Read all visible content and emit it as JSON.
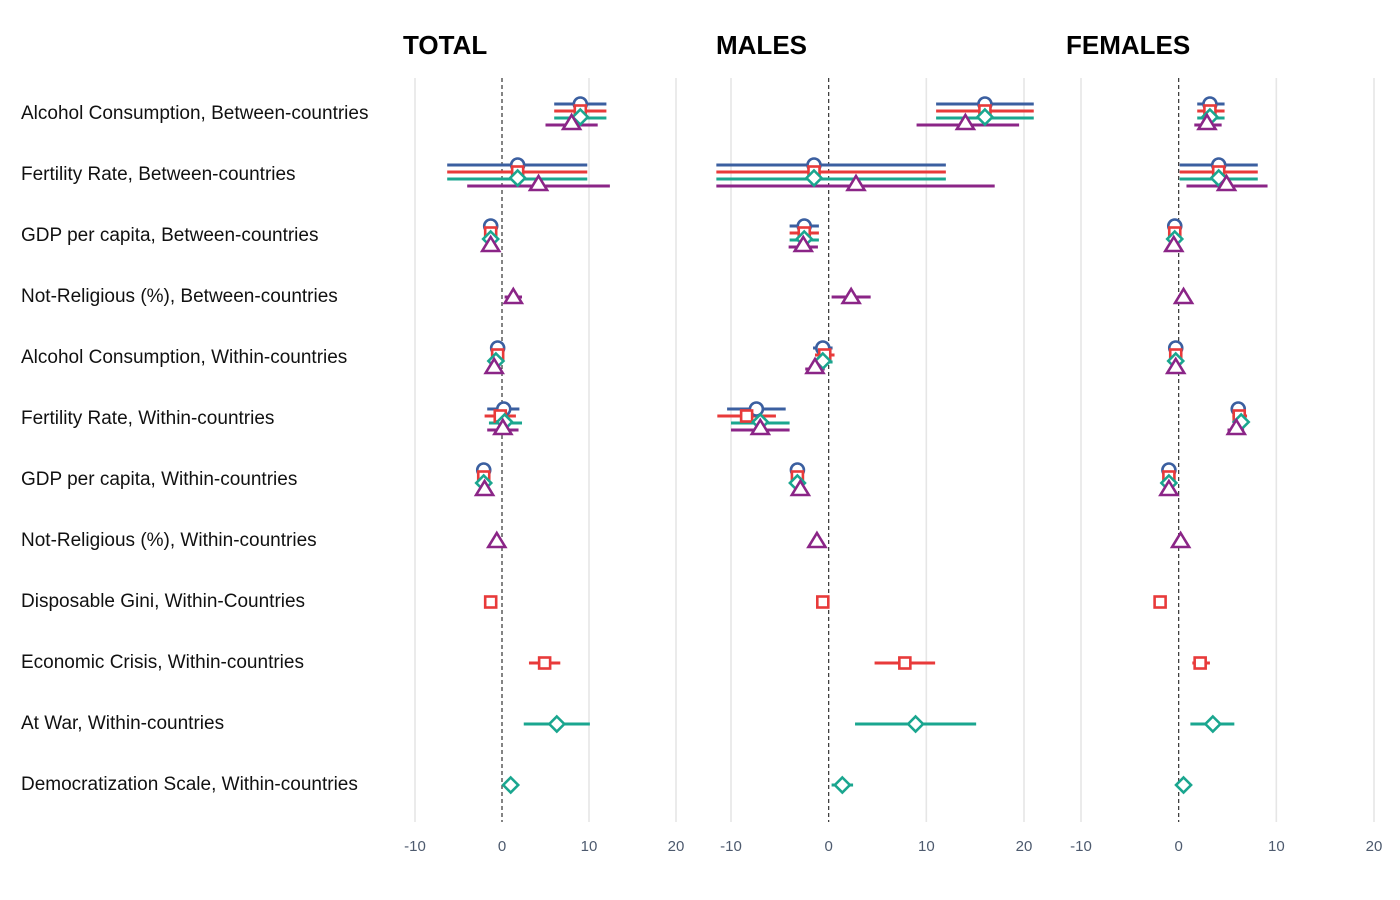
{
  "chart_data": {
    "type": "forest",
    "title": "",
    "xlabel": "",
    "ylabel": "",
    "xlim": [
      -10,
      20
    ],
    "xticks": [
      -10,
      0,
      10,
      20
    ],
    "reference_line": 0,
    "grid": true,
    "legend": "none",
    "rows": [
      "Alcohol Consumption, Between-countries",
      "Fertility Rate, Between-countries",
      "GDP per capita, Between-countries",
      "Not-Religious (%), Between-countries",
      "Alcohol Consumption, Within-countries",
      "Fertility Rate, Within-countries",
      "GDP per capita, Within-countries",
      "Not-Religious (%), Within-countries",
      "Disposable Gini, Within-Countries",
      "Economic Crisis, Within-countries",
      "At War, Within-countries",
      "Democratization Scale, Within-countries"
    ],
    "models": [
      {
        "id": "m1",
        "marker": "circle",
        "color": "#3b5fa0"
      },
      {
        "id": "m2",
        "marker": "square",
        "color": "#e83a3a"
      },
      {
        "id": "m3",
        "marker": "diamond",
        "color": "#1aa68f"
      },
      {
        "id": "m4",
        "marker": "triangle",
        "color": "#8b2587"
      }
    ],
    "panels": [
      {
        "title": "TOTAL",
        "estimates": [
          {
            "row": 0,
            "model": "m1",
            "est": 9.0,
            "lo": 6.0,
            "hi": 12.0
          },
          {
            "row": 0,
            "model": "m2",
            "est": 9.0,
            "lo": 6.0,
            "hi": 12.0
          },
          {
            "row": 0,
            "model": "m3",
            "est": 9.0,
            "lo": 6.0,
            "hi": 12.0
          },
          {
            "row": 0,
            "model": "m4",
            "est": 8.0,
            "lo": 5.0,
            "hi": 11.0
          },
          {
            "row": 1,
            "model": "m1",
            "est": 1.8,
            "lo": -6.3,
            "hi": 9.8
          },
          {
            "row": 1,
            "model": "m2",
            "est": 1.8,
            "lo": -6.3,
            "hi": 9.8
          },
          {
            "row": 1,
            "model": "m3",
            "est": 1.8,
            "lo": -6.3,
            "hi": 9.8
          },
          {
            "row": 1,
            "model": "m4",
            "est": 4.2,
            "lo": -4.0,
            "hi": 12.4
          },
          {
            "row": 2,
            "model": "m1",
            "est": -1.3,
            "lo": -2.0,
            "hi": -0.6
          },
          {
            "row": 2,
            "model": "m2",
            "est": -1.3,
            "lo": -2.0,
            "hi": -0.6
          },
          {
            "row": 2,
            "model": "m3",
            "est": -1.3,
            "lo": -2.0,
            "hi": -0.6
          },
          {
            "row": 2,
            "model": "m4",
            "est": -1.3,
            "lo": -2.0,
            "hi": -0.6
          },
          {
            "row": 3,
            "model": "m4",
            "est": 1.3,
            "lo": 0.3,
            "hi": 2.3
          },
          {
            "row": 4,
            "model": "m1",
            "est": -0.5,
            "lo": -0.9,
            "hi": -0.1
          },
          {
            "row": 4,
            "model": "m2",
            "est": -0.5,
            "lo": -0.9,
            "hi": -0.1
          },
          {
            "row": 4,
            "model": "m3",
            "est": -0.7,
            "lo": -1.2,
            "hi": -0.2
          },
          {
            "row": 4,
            "model": "m4",
            "est": -0.9,
            "lo": -1.4,
            "hi": -0.4
          },
          {
            "row": 5,
            "model": "m1",
            "est": 0.2,
            "lo": -1.7,
            "hi": 2.0
          },
          {
            "row": 5,
            "model": "m2",
            "est": -0.2,
            "lo": -2.0,
            "hi": 1.6
          },
          {
            "row": 5,
            "model": "m3",
            "est": 0.3,
            "lo": -1.5,
            "hi": 2.3
          },
          {
            "row": 5,
            "model": "m4",
            "est": 0.1,
            "lo": -1.7,
            "hi": 1.9
          },
          {
            "row": 6,
            "model": "m1",
            "est": -2.1,
            "lo": -2.6,
            "hi": -1.6
          },
          {
            "row": 6,
            "model": "m2",
            "est": -2.1,
            "lo": -2.6,
            "hi": -1.6
          },
          {
            "row": 6,
            "model": "m3",
            "est": -2.1,
            "lo": -2.7,
            "hi": -1.5
          },
          {
            "row": 6,
            "model": "m4",
            "est": -2.0,
            "lo": -2.6,
            "hi": -1.4
          },
          {
            "row": 7,
            "model": "m4",
            "est": -0.6,
            "lo": -1.1,
            "hi": -0.1
          },
          {
            "row": 8,
            "model": "m2",
            "est": -1.3,
            "lo": -1.8,
            "hi": -0.8
          },
          {
            "row": 9,
            "model": "m2",
            "est": 4.9,
            "lo": 3.1,
            "hi": 6.7
          },
          {
            "row": 10,
            "model": "m3",
            "est": 6.3,
            "lo": 2.5,
            "hi": 10.1
          },
          {
            "row": 11,
            "model": "m3",
            "est": 1.0,
            "lo": 0.5,
            "hi": 1.5
          }
        ]
      },
      {
        "title": "MALES",
        "estimates": [
          {
            "row": 0,
            "model": "m1",
            "est": 16.0,
            "lo": 11.0,
            "hi": 21.0
          },
          {
            "row": 0,
            "model": "m2",
            "est": 16.0,
            "lo": 11.0,
            "hi": 21.0
          },
          {
            "row": 0,
            "model": "m3",
            "est": 16.0,
            "lo": 11.0,
            "hi": 21.0
          },
          {
            "row": 0,
            "model": "m4",
            "est": 14.0,
            "lo": 9.0,
            "hi": 19.5
          },
          {
            "row": 1,
            "model": "m1",
            "est": -1.5,
            "lo": -11.5,
            "hi": 12.0
          },
          {
            "row": 1,
            "model": "m2",
            "est": -1.5,
            "lo": -11.5,
            "hi": 12.0
          },
          {
            "row": 1,
            "model": "m3",
            "est": -1.5,
            "lo": -11.5,
            "hi": 12.0
          },
          {
            "row": 1,
            "model": "m4",
            "est": 2.8,
            "lo": -11.5,
            "hi": 17.0
          },
          {
            "row": 2,
            "model": "m1",
            "est": -2.5,
            "lo": -4.0,
            "hi": -1.0
          },
          {
            "row": 2,
            "model": "m2",
            "est": -2.5,
            "lo": -4.0,
            "hi": -1.0
          },
          {
            "row": 2,
            "model": "m3",
            "est": -2.5,
            "lo": -4.0,
            "hi": -1.0
          },
          {
            "row": 2,
            "model": "m4",
            "est": -2.6,
            "lo": -4.1,
            "hi": -1.1
          },
          {
            "row": 3,
            "model": "m4",
            "est": 2.3,
            "lo": 0.3,
            "hi": 4.3
          },
          {
            "row": 4,
            "model": "m1",
            "est": -0.6,
            "lo": -1.6,
            "hi": 0.4
          },
          {
            "row": 4,
            "model": "m2",
            "est": -0.4,
            "lo": -1.4,
            "hi": 0.6
          },
          {
            "row": 4,
            "model": "m3",
            "est": -0.6,
            "lo": -1.6,
            "hi": 0.4
          },
          {
            "row": 4,
            "model": "m4",
            "est": -1.4,
            "lo": -2.4,
            "hi": -0.4
          },
          {
            "row": 5,
            "model": "m1",
            "est": -7.4,
            "lo": -10.4,
            "hi": -4.4
          },
          {
            "row": 5,
            "model": "m2",
            "est": -8.4,
            "lo": -11.4,
            "hi": -5.4
          },
          {
            "row": 5,
            "model": "m3",
            "est": -7.0,
            "lo": -10.0,
            "hi": -4.0
          },
          {
            "row": 5,
            "model": "m4",
            "est": -7.0,
            "lo": -10.0,
            "hi": -4.0
          },
          {
            "row": 6,
            "model": "m1",
            "est": -3.2,
            "lo": -3.7,
            "hi": -2.7
          },
          {
            "row": 6,
            "model": "m2",
            "est": -3.2,
            "lo": -3.7,
            "hi": -2.7
          },
          {
            "row": 6,
            "model": "m3",
            "est": -3.2,
            "lo": -3.8,
            "hi": -2.6
          },
          {
            "row": 6,
            "model": "m4",
            "est": -2.9,
            "lo": -3.5,
            "hi": -2.3
          },
          {
            "row": 7,
            "model": "m4",
            "est": -1.2,
            "lo": -1.7,
            "hi": -0.7
          },
          {
            "row": 8,
            "model": "m2",
            "est": -0.6,
            "lo": -1.1,
            "hi": -0.1
          },
          {
            "row": 9,
            "model": "m2",
            "est": 7.8,
            "lo": 4.7,
            "hi": 10.9
          },
          {
            "row": 10,
            "model": "m3",
            "est": 8.9,
            "lo": 2.7,
            "hi": 15.1
          },
          {
            "row": 11,
            "model": "m3",
            "est": 1.4,
            "lo": 0.3,
            "hi": 2.5
          }
        ]
      },
      {
        "title": "FEMALES",
        "estimates": [
          {
            "row": 0,
            "model": "m1",
            "est": 3.2,
            "lo": 1.9,
            "hi": 4.7
          },
          {
            "row": 0,
            "model": "m2",
            "est": 3.2,
            "lo": 1.9,
            "hi": 4.7
          },
          {
            "row": 0,
            "model": "m3",
            "est": 3.2,
            "lo": 1.9,
            "hi": 4.7
          },
          {
            "row": 0,
            "model": "m4",
            "est": 2.9,
            "lo": 1.6,
            "hi": 4.4
          },
          {
            "row": 1,
            "model": "m1",
            "est": 4.1,
            "lo": 0.1,
            "hi": 8.1
          },
          {
            "row": 1,
            "model": "m2",
            "est": 4.1,
            "lo": 0.1,
            "hi": 8.1
          },
          {
            "row": 1,
            "model": "m3",
            "est": 4.1,
            "lo": 0.1,
            "hi": 8.1
          },
          {
            "row": 1,
            "model": "m4",
            "est": 4.9,
            "lo": 0.8,
            "hi": 9.1
          },
          {
            "row": 2,
            "model": "m1",
            "est": -0.4,
            "lo": -0.8,
            "hi": 0.0
          },
          {
            "row": 2,
            "model": "m2",
            "est": -0.4,
            "lo": -0.8,
            "hi": 0.0
          },
          {
            "row": 2,
            "model": "m3",
            "est": -0.4,
            "lo": -0.8,
            "hi": 0.0
          },
          {
            "row": 2,
            "model": "m4",
            "est": -0.5,
            "lo": -0.9,
            "hi": -0.1
          },
          {
            "row": 3,
            "model": "m4",
            "est": 0.5,
            "lo": 0.1,
            "hi": 0.9
          },
          {
            "row": 4,
            "model": "m1",
            "est": -0.3,
            "lo": -0.7,
            "hi": 0.1
          },
          {
            "row": 4,
            "model": "m2",
            "est": -0.3,
            "lo": -0.7,
            "hi": 0.1
          },
          {
            "row": 4,
            "model": "m3",
            "est": -0.3,
            "lo": -0.7,
            "hi": 0.1
          },
          {
            "row": 4,
            "model": "m4",
            "est": -0.3,
            "lo": -0.7,
            "hi": 0.1
          },
          {
            "row": 5,
            "model": "m1",
            "est": 6.1,
            "lo": 5.4,
            "hi": 6.8
          },
          {
            "row": 5,
            "model": "m2",
            "est": 6.2,
            "lo": 5.5,
            "hi": 7.0
          },
          {
            "row": 5,
            "model": "m3",
            "est": 6.4,
            "lo": 5.6,
            "hi": 7.1
          },
          {
            "row": 5,
            "model": "m4",
            "est": 5.9,
            "lo": 5.0,
            "hi": 6.7
          },
          {
            "row": 6,
            "model": "m1",
            "est": -1.0,
            "lo": -1.5,
            "hi": -0.5
          },
          {
            "row": 6,
            "model": "m2",
            "est": -1.0,
            "lo": -1.5,
            "hi": -0.5
          },
          {
            "row": 6,
            "model": "m3",
            "est": -1.0,
            "lo": -1.5,
            "hi": -0.5
          },
          {
            "row": 6,
            "model": "m4",
            "est": -1.0,
            "lo": -1.5,
            "hi": -0.5
          },
          {
            "row": 7,
            "model": "m4",
            "est": 0.2,
            "lo": -0.2,
            "hi": 0.6
          },
          {
            "row": 8,
            "model": "m2",
            "est": -1.9,
            "lo": -2.3,
            "hi": -1.5
          },
          {
            "row": 9,
            "model": "m2",
            "est": 2.2,
            "lo": 1.4,
            "hi": 3.2
          },
          {
            "row": 10,
            "model": "m3",
            "est": 3.5,
            "lo": 1.2,
            "hi": 5.7
          },
          {
            "row": 11,
            "model": "m3",
            "est": 0.5,
            "lo": 0.1,
            "hi": 0.9
          }
        ]
      }
    ]
  }
}
